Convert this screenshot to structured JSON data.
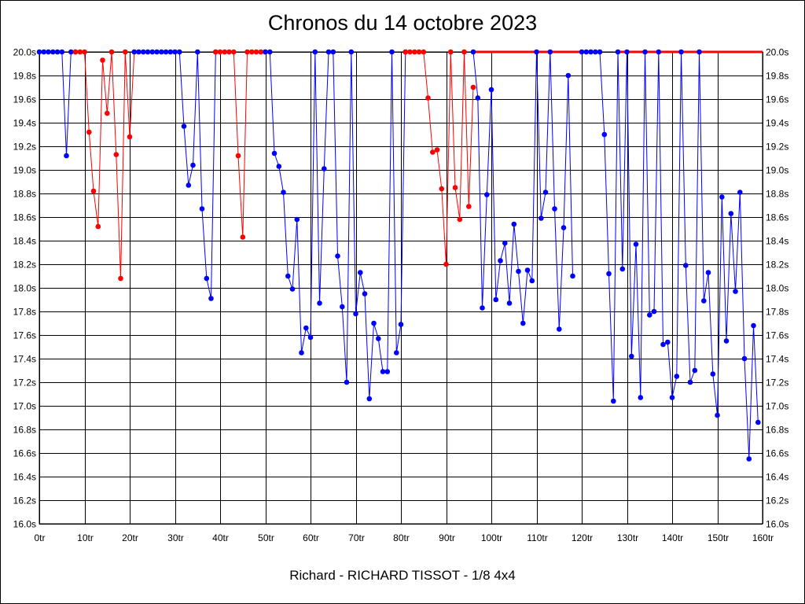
{
  "chart_data": {
    "type": "line",
    "title": "Chronos du 14 octobre 2023",
    "subtitle": "Richard - RICHARD TISSOT - 1/8 4x4",
    "xlim": [
      0,
      160
    ],
    "ylim": [
      16.0,
      20.0
    ],
    "x_ticks": [
      0,
      10,
      20,
      30,
      40,
      50,
      60,
      70,
      80,
      90,
      100,
      110,
      120,
      130,
      140,
      150,
      160
    ],
    "x_tick_labels": [
      "0tr",
      "10tr",
      "20tr",
      "30tr",
      "40tr",
      "50tr",
      "60tr",
      "70tr",
      "80tr",
      "90tr",
      "100tr",
      "110tr",
      "120tr",
      "130tr",
      "140tr",
      "150tr",
      "160tr"
    ],
    "y_ticks": [
      16.0,
      16.2,
      16.4,
      16.6,
      16.8,
      17.0,
      17.2,
      17.4,
      17.6,
      17.8,
      18.0,
      18.2,
      18.4,
      18.6,
      18.8,
      19.0,
      19.2,
      19.4,
      19.6,
      19.8,
      20.0
    ],
    "y_tick_labels": [
      "16.0s",
      "16.2s",
      "16.4s",
      "16.6s",
      "16.8s",
      "17.0s",
      "17.2s",
      "17.4s",
      "17.6s",
      "17.8s",
      "18.0s",
      "18.2s",
      "18.4s",
      "18.6s",
      "18.8s",
      "19.0s",
      "19.2s",
      "19.4s",
      "19.6s",
      "19.8s",
      "20.0s"
    ],
    "grid": true,
    "colors": {
      "blue": "#0000ff",
      "red": "#ff0000"
    },
    "series": [
      {
        "color": "#0000ff",
        "points": [
          [
            0,
            20.0
          ],
          [
            1,
            20.0
          ],
          [
            2,
            20.0
          ],
          [
            3,
            20.0
          ],
          [
            4,
            20.0
          ],
          [
            5,
            20.0
          ],
          [
            6,
            19.12
          ],
          [
            7,
            20.0
          ],
          [
            8,
            20.0
          ]
        ]
      },
      {
        "color": "#ff0000",
        "points": [
          [
            8,
            20.0
          ],
          [
            9,
            20.0
          ],
          [
            10,
            20.0
          ],
          [
            11,
            19.32
          ],
          [
            12,
            18.82
          ],
          [
            13,
            18.52
          ],
          [
            14,
            19.93
          ],
          [
            15,
            19.48
          ],
          [
            16,
            20.0
          ],
          [
            17,
            19.13
          ],
          [
            18,
            18.08
          ],
          [
            19,
            20.0
          ],
          [
            20,
            19.28
          ],
          [
            21,
            20.0
          ]
        ]
      },
      {
        "color": "#0000ff",
        "points": [
          [
            21,
            20.0
          ],
          [
            22,
            20.0
          ],
          [
            23,
            20.0
          ],
          [
            24,
            20.0
          ],
          [
            25,
            20.0
          ],
          [
            26,
            20.0
          ],
          [
            27,
            20.0
          ],
          [
            28,
            20.0
          ],
          [
            29,
            20.0
          ],
          [
            30,
            20.0
          ],
          [
            31,
            20.0
          ],
          [
            32,
            19.37
          ],
          [
            33,
            18.87
          ],
          [
            34,
            19.04
          ],
          [
            35,
            20.0
          ],
          [
            36,
            18.67
          ],
          [
            37,
            18.08
          ],
          [
            38,
            17.91
          ],
          [
            39,
            20.0
          ]
        ]
      },
      {
        "color": "#ff0000",
        "points": [
          [
            39,
            20.0
          ],
          [
            40,
            20.0
          ],
          [
            41,
            20.0
          ],
          [
            42,
            20.0
          ],
          [
            43,
            20.0
          ],
          [
            44,
            19.12
          ],
          [
            45,
            18.43
          ],
          [
            46,
            20.0
          ],
          [
            47,
            20.0
          ],
          [
            48,
            20.0
          ],
          [
            49,
            20.0
          ],
          [
            50,
            20.0
          ]
        ]
      },
      {
        "color": "#0000ff",
        "points": [
          [
            50,
            20.0
          ],
          [
            51,
            20.0
          ],
          [
            52,
            19.14
          ],
          [
            53,
            19.03
          ],
          [
            54,
            18.81
          ],
          [
            55,
            18.1
          ],
          [
            56,
            17.99
          ],
          [
            57,
            18.58
          ],
          [
            58,
            17.45
          ],
          [
            59,
            17.66
          ],
          [
            60,
            17.58
          ],
          [
            61,
            20.0
          ],
          [
            62,
            17.87
          ],
          [
            63,
            19.01
          ],
          [
            64,
            20.0
          ],
          [
            65,
            20.0
          ],
          [
            66,
            18.27
          ],
          [
            67,
            17.84
          ],
          [
            68,
            17.2
          ],
          [
            69,
            20.0
          ],
          [
            70,
            17.78
          ],
          [
            71,
            18.13
          ],
          [
            72,
            17.95
          ],
          [
            73,
            17.06
          ],
          [
            74,
            17.7
          ],
          [
            75,
            17.57
          ],
          [
            76,
            17.29
          ],
          [
            77,
            17.29
          ],
          [
            78,
            20.0
          ],
          [
            79,
            17.45
          ],
          [
            80,
            17.69
          ],
          [
            81,
            20.0
          ]
        ]
      },
      {
        "color": "#ff0000",
        "points": [
          [
            81,
            20.0
          ],
          [
            82,
            20.0
          ],
          [
            83,
            20.0
          ],
          [
            84,
            20.0
          ],
          [
            85,
            20.0
          ],
          [
            86,
            19.61
          ],
          [
            87,
            19.15
          ],
          [
            88,
            19.17
          ],
          [
            89,
            18.84
          ],
          [
            90,
            18.2
          ],
          [
            91,
            20.0
          ],
          [
            92,
            18.85
          ],
          [
            93,
            18.58
          ],
          [
            94,
            20.0
          ],
          [
            95,
            18.69
          ],
          [
            96,
            19.7
          ]
        ]
      },
      {
        "color": "#0000ff",
        "points": [
          [
            96,
            20.0
          ],
          [
            97,
            19.61
          ],
          [
            98,
            17.83
          ],
          [
            99,
            18.79
          ],
          [
            100,
            19.68
          ],
          [
            101,
            17.9
          ],
          [
            102,
            18.23
          ],
          [
            103,
            18.38
          ],
          [
            104,
            17.87
          ],
          [
            105,
            18.54
          ],
          [
            106,
            18.14
          ],
          [
            107,
            17.7
          ],
          [
            108,
            18.15
          ],
          [
            109,
            18.06
          ],
          [
            110,
            20.0
          ],
          [
            111,
            18.59
          ],
          [
            112,
            18.81
          ],
          [
            113,
            20.0
          ],
          [
            114,
            18.67
          ],
          [
            115,
            17.65
          ],
          [
            116,
            18.51
          ],
          [
            117,
            19.8
          ],
          [
            118,
            18.1
          ]
        ]
      },
      {
        "color": "#ff0000",
        "points": [
          [
            96,
            20.0
          ],
          [
            120,
            20.0
          ]
        ]
      },
      {
        "color": "#0000ff",
        "points": [
          [
            120,
            20.0
          ],
          [
            121,
            20.0
          ],
          [
            122,
            20.0
          ],
          [
            123,
            20.0
          ],
          [
            124,
            20.0
          ],
          [
            125,
            19.3
          ],
          [
            126,
            18.12
          ],
          [
            127,
            17.04
          ],
          [
            128,
            20.0
          ],
          [
            129,
            18.16
          ],
          [
            130,
            20.0
          ],
          [
            131,
            17.42
          ],
          [
            132,
            18.37
          ],
          [
            133,
            17.07
          ],
          [
            134,
            20.0
          ],
          [
            135,
            17.77
          ],
          [
            136,
            17.8
          ],
          [
            137,
            20.0
          ],
          [
            138,
            17.52
          ],
          [
            139,
            17.54
          ],
          [
            140,
            17.07
          ],
          [
            141,
            17.25
          ],
          [
            142,
            20.0
          ],
          [
            143,
            18.19
          ],
          [
            144,
            17.2
          ],
          [
            145,
            17.3
          ],
          [
            146,
            20.0
          ],
          [
            147,
            17.89
          ],
          [
            148,
            18.13
          ],
          [
            149,
            17.27
          ],
          [
            150,
            16.92
          ],
          [
            151,
            18.77
          ],
          [
            152,
            17.55
          ],
          [
            153,
            18.63
          ],
          [
            154,
            17.97
          ],
          [
            155,
            18.81
          ],
          [
            156,
            17.4
          ],
          [
            157,
            16.55
          ],
          [
            158,
            17.68
          ],
          [
            159,
            16.86
          ]
        ]
      },
      {
        "color": "#ff0000",
        "points": [
          [
            128,
            20.0
          ],
          [
            160,
            20.0
          ]
        ]
      }
    ]
  }
}
